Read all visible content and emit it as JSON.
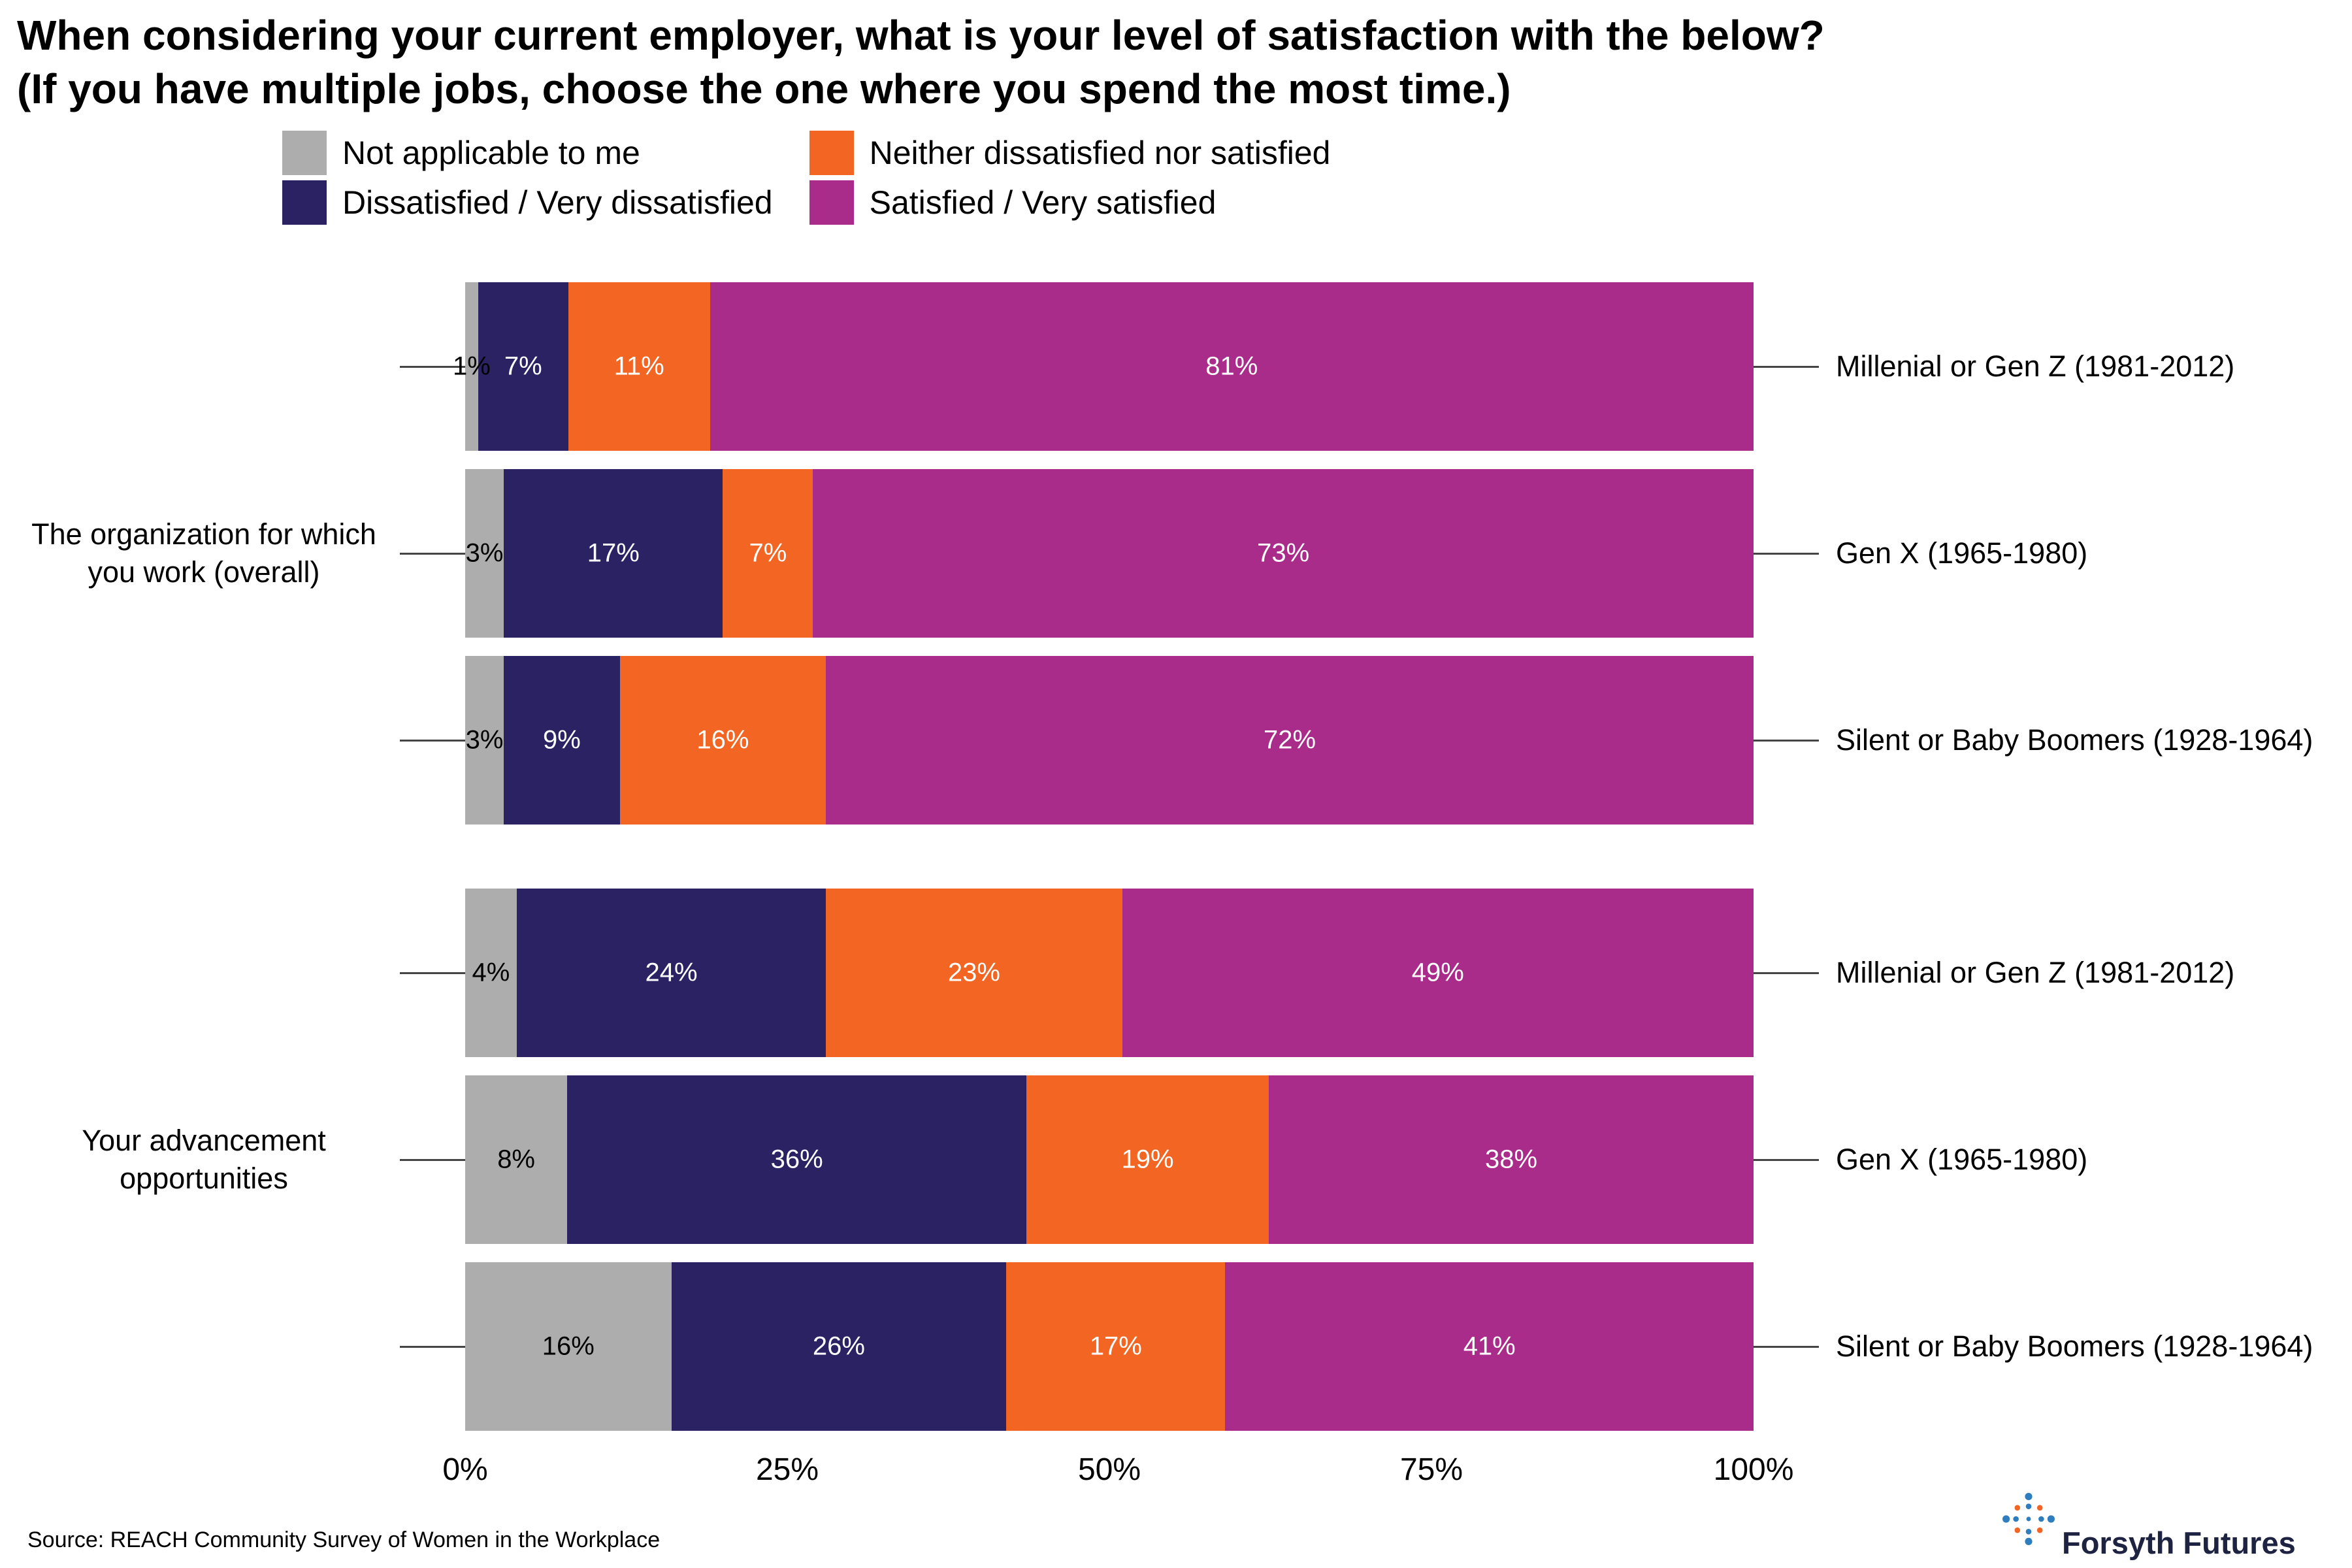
{
  "title": {
    "line1": "When considering your current employer, what is your level of satisfaction with the below?",
    "line2": "(If you have multiple jobs, choose the one where you spend the most time.)"
  },
  "legend": {
    "items": [
      {
        "label": "Not applicable to me",
        "color": "#ADADAD"
      },
      {
        "label": "Dissatisfied / Very dissatisfied",
        "color": "#2B2263"
      },
      {
        "label": "Neither dissatisfied nor satisfied",
        "color": "#F26522"
      },
      {
        "label": "Satisfied / Very satisfied",
        "color": "#A92C8A"
      }
    ]
  },
  "chart_data": {
    "type": "bar",
    "orientation": "horizontal",
    "stacked": true,
    "unit": "%",
    "xlim": [
      0,
      100
    ],
    "x_ticks": [
      "0%",
      "25%",
      "50%",
      "75%",
      "100%"
    ],
    "series_names": [
      "Not applicable to me",
      "Dissatisfied / Very dissatisfied",
      "Neither dissatisfied nor satisfied",
      "Satisfied / Very satisfied"
    ],
    "groups": [
      {
        "label": "The organization for which you work (overall)",
        "rows": [
          {
            "label": "Millenial or Gen Z (1981-2012)",
            "values": [
              1,
              7,
              11,
              81
            ]
          },
          {
            "label": "Gen X (1965-1980)",
            "values": [
              3,
              17,
              7,
              73
            ]
          },
          {
            "label": "Silent or Baby Boomers (1928-1964)",
            "values": [
              3,
              9,
              16,
              72
            ]
          }
        ]
      },
      {
        "label": "Your advancement opportunities",
        "rows": [
          {
            "label": "Millenial or Gen Z (1981-2012)",
            "values": [
              4,
              24,
              23,
              49
            ]
          },
          {
            "label": "Gen X (1965-1980)",
            "values": [
              8,
              36,
              19,
              38
            ]
          },
          {
            "label": "Silent or Baby Boomers (1928-1964)",
            "values": [
              16,
              26,
              17,
              41
            ]
          }
        ]
      }
    ]
  },
  "footer": {
    "source": "Source: REACH Community Survey of Women in the Workplace",
    "brand": "Forsyth Futures"
  },
  "colors": {
    "gray": "#ADADAD",
    "navy": "#2B2263",
    "orange": "#F26522",
    "magenta": "#A92C8A",
    "tick_line": "#454545",
    "brand_text": "#1E2342",
    "logo_blue": "#2E7DBE",
    "logo_orange": "#F26522"
  }
}
